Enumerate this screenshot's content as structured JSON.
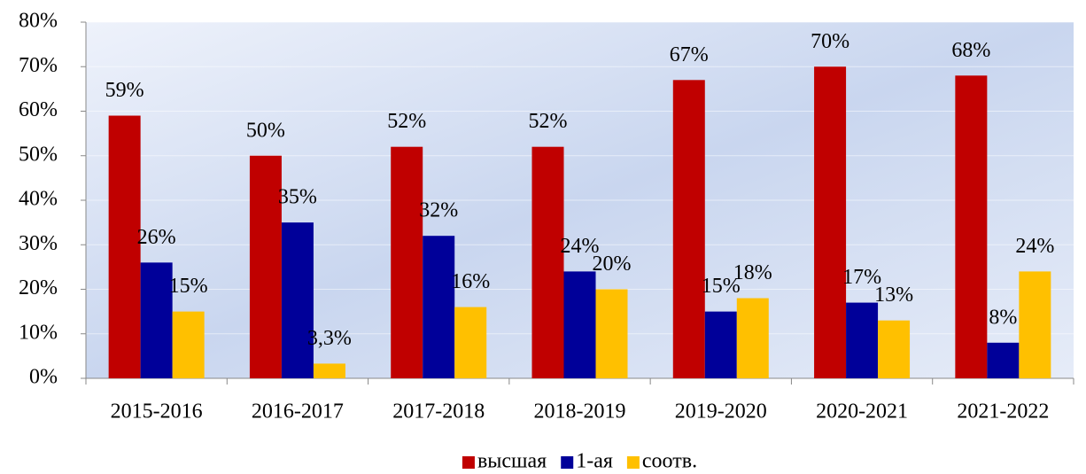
{
  "chart_data": {
    "type": "bar",
    "categories": [
      "2015-2016",
      "2016-2017",
      "2017-2018",
      "2018-2019",
      "2019-2020",
      "2020-2021",
      "2021-2022"
    ],
    "series": [
      {
        "name": "высшая",
        "color": "#c00000",
        "values": [
          59,
          50,
          52,
          52,
          67,
          70,
          68
        ],
        "value_labels": [
          "59%",
          "50%",
          "52%",
          "52%",
          "67%",
          "70%",
          "68%"
        ]
      },
      {
        "name": "1-ая",
        "color": "#000099",
        "values": [
          26,
          35,
          32,
          24,
          15,
          17,
          8
        ],
        "value_labels": [
          "26%",
          "35%",
          "32%",
          "24%",
          "15%",
          "17%",
          "8%"
        ]
      },
      {
        "name": "соотв.",
        "color": "#ffc000",
        "values": [
          15,
          3.3,
          16,
          20,
          18,
          13,
          24
        ],
        "value_labels": [
          "15%",
          "3,3%",
          "16%",
          "20%",
          "18%",
          "13%",
          "24%"
        ]
      }
    ],
    "ylim": [
      0,
      80
    ],
    "yticks": [
      {
        "value": 0,
        "label": "0%"
      },
      {
        "value": 10,
        "label": "10%"
      },
      {
        "value": 20,
        "label": "20%"
      },
      {
        "value": 30,
        "label": "30%"
      },
      {
        "value": 40,
        "label": "40%"
      },
      {
        "value": 50,
        "label": "50%"
      },
      {
        "value": 60,
        "label": "60%"
      },
      {
        "value": 70,
        "label": "70%"
      },
      {
        "value": 80,
        "label": "80%"
      }
    ],
    "grid": true,
    "legend": "bottom"
  }
}
